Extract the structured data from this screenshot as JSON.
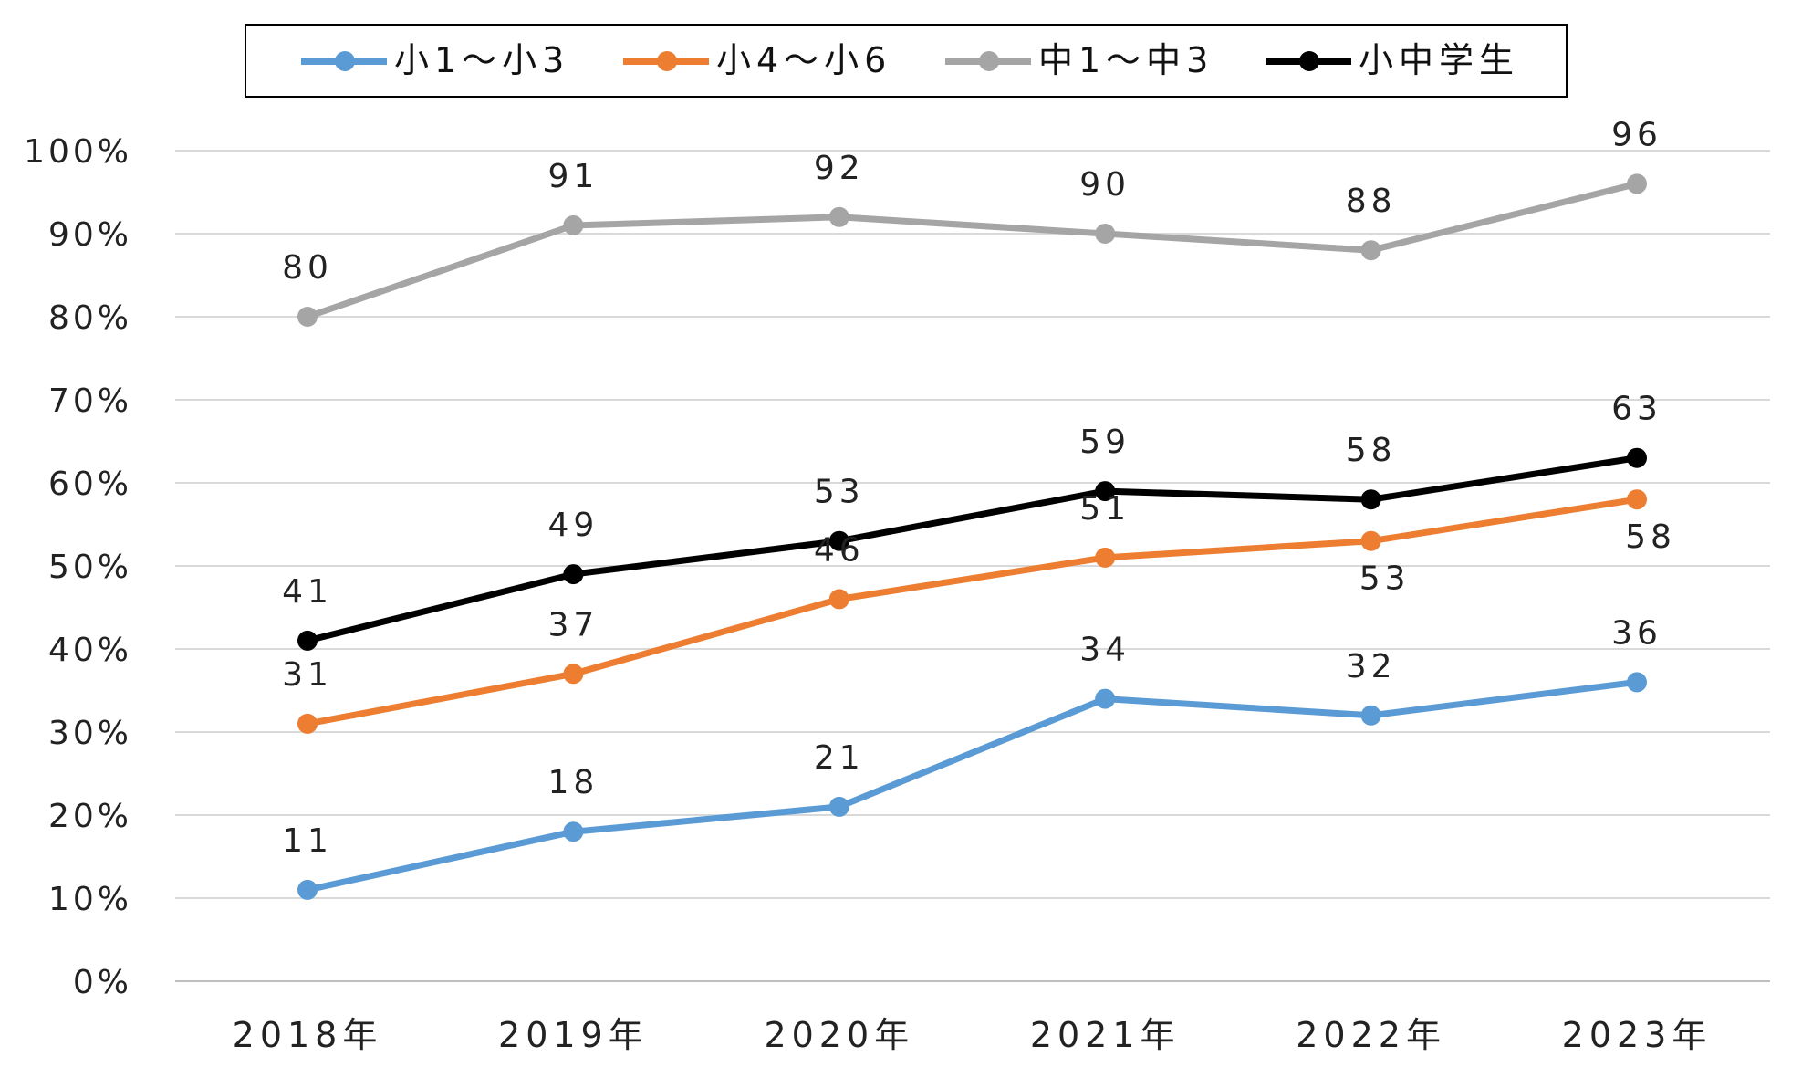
{
  "chart_data": {
    "type": "line",
    "categories": [
      "2018年",
      "2019年",
      "2020年",
      "2021年",
      "2022年",
      "2023年"
    ],
    "ylim": [
      0,
      100
    ],
    "yticks": [
      "0%",
      "10%",
      "20%",
      "30%",
      "40%",
      "50%",
      "60%",
      "70%",
      "80%",
      "90%",
      "100%"
    ],
    "grid": true,
    "legend_position": "top",
    "series": [
      {
        "name": "小1～小3",
        "color": "#5b9bd5",
        "values": [
          11,
          18,
          21,
          34,
          32,
          36
        ]
      },
      {
        "name": "小4～小6",
        "color": "#ed7d31",
        "values": [
          31,
          37,
          46,
          51,
          53,
          58
        ]
      },
      {
        "name": "中1～中3",
        "color": "#a5a5a5",
        "values": [
          80,
          91,
          92,
          90,
          88,
          96
        ]
      },
      {
        "name": "小中学生",
        "color": "#000000",
        "values": [
          41,
          49,
          53,
          59,
          58,
          63
        ]
      }
    ]
  }
}
